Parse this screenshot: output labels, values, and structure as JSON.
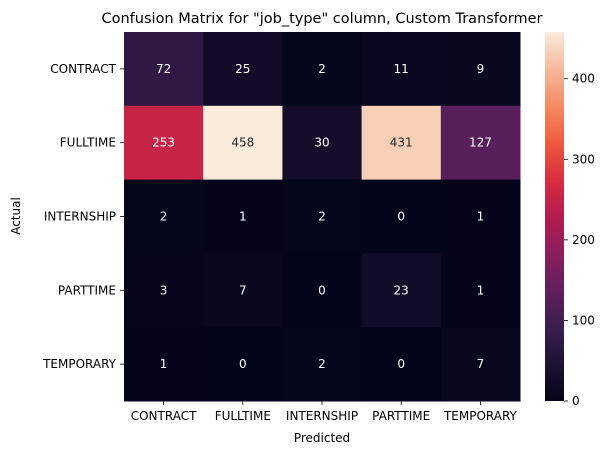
{
  "chart_data": {
    "type": "heatmap",
    "title": "Confusion Matrix for \"job_type\" column, Custom Transformer",
    "xlabel": "Predicted",
    "ylabel": "Actual",
    "x_categories": [
      "CONTRACT",
      "FULLTIME",
      "INTERNSHIP",
      "PARTTIME",
      "TEMPORARY"
    ],
    "y_categories": [
      "CONTRACT",
      "FULLTIME",
      "INTERNSHIP",
      "PARTTIME",
      "TEMPORARY"
    ],
    "values": [
      [
        72,
        25,
        2,
        11,
        9
      ],
      [
        253,
        458,
        30,
        431,
        127
      ],
      [
        2,
        1,
        2,
        0,
        1
      ],
      [
        3,
        7,
        0,
        23,
        1
      ],
      [
        1,
        0,
        2,
        0,
        7
      ]
    ],
    "colorscale": "rocket",
    "colorbar": {
      "range": [
        0,
        458
      ],
      "ticks": [
        0,
        100,
        200,
        300,
        400
      ]
    }
  }
}
